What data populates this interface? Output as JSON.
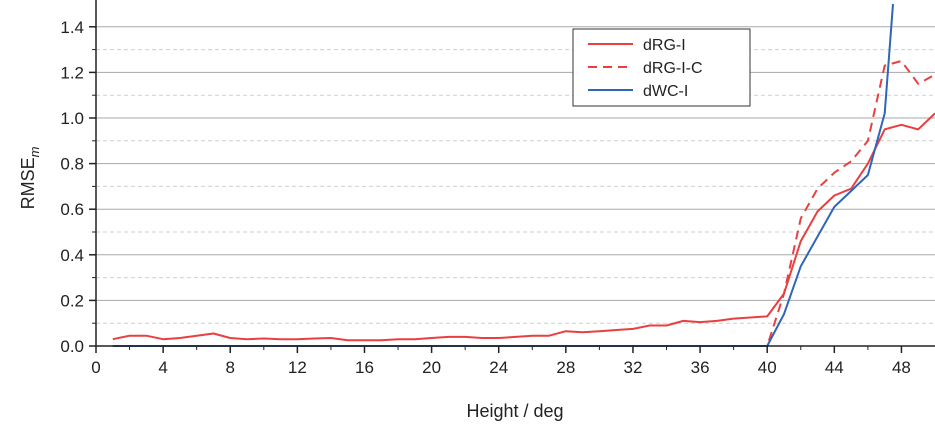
{
  "chart_data": {
    "type": "line",
    "title": "",
    "xlabel": "Height / deg",
    "ylabel_main": "RMSE",
    "ylabel_sub": "m",
    "xlim": [
      0,
      50
    ],
    "ylim": [
      0,
      1.5
    ],
    "xticks": [
      0,
      4,
      8,
      12,
      16,
      20,
      24,
      28,
      32,
      36,
      40,
      44,
      48
    ],
    "yticks": [
      0.0,
      0.2,
      0.4,
      0.6,
      0.8,
      1.0,
      1.2,
      1.4
    ],
    "ytick_labels": [
      "0.0",
      "0.2",
      "0.4",
      "0.6",
      "0.8",
      "1.0",
      "1.2",
      "1.4"
    ],
    "grid": "horizontal major solid, minor dashed",
    "legend_position": "top-right",
    "series": [
      {
        "name": "dRG-I",
        "color": "#e8403f",
        "dash": "solid",
        "x": [
          1,
          2,
          3,
          4,
          5,
          6,
          7,
          8,
          9,
          10,
          11,
          12,
          13,
          14,
          15,
          16,
          17,
          18,
          19,
          20,
          21,
          22,
          23,
          24,
          25,
          26,
          27,
          28,
          29,
          30,
          31,
          32,
          33,
          34,
          35,
          36,
          37,
          38,
          39,
          40,
          41,
          42,
          43,
          44,
          45,
          46,
          47,
          48,
          49,
          50
        ],
        "y": [
          0.03,
          0.045,
          0.045,
          0.03,
          0.035,
          0.045,
          0.055,
          0.035,
          0.03,
          0.033,
          0.03,
          0.03,
          0.033,
          0.035,
          0.025,
          0.025,
          0.025,
          0.03,
          0.03,
          0.035,
          0.04,
          0.04,
          0.035,
          0.035,
          0.04,
          0.045,
          0.045,
          0.065,
          0.06,
          0.065,
          0.07,
          0.075,
          0.09,
          0.09,
          0.11,
          0.105,
          0.11,
          0.12,
          0.125,
          0.13,
          0.23,
          0.46,
          0.59,
          0.66,
          0.69,
          0.8,
          0.95,
          0.97,
          0.95,
          1.02
        ]
      },
      {
        "name": "dRG-I-C",
        "color": "#e8403f",
        "dash": "dashed",
        "x": [
          1,
          40,
          41,
          42,
          43,
          44,
          45,
          46,
          47,
          48,
          49,
          50
        ],
        "y": [
          0,
          0,
          0.23,
          0.56,
          0.69,
          0.76,
          0.81,
          0.9,
          1.23,
          1.25,
          1.15,
          1.19
        ]
      },
      {
        "name": "dWC-I",
        "color": "#2e66b8",
        "dash": "solid",
        "x": [
          1,
          40,
          41,
          42,
          43,
          44,
          45,
          46,
          47,
          47.5
        ],
        "y": [
          0,
          0,
          0.14,
          0.35,
          0.48,
          0.61,
          0.68,
          0.75,
          1.02,
          1.5
        ]
      }
    ]
  }
}
